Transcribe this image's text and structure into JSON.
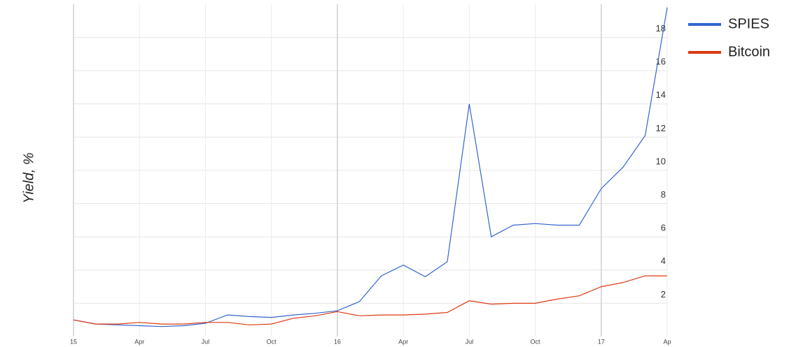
{
  "chart_data": {
    "type": "line",
    "y_label": "Yield, %",
    "x": [
      "2015-01",
      "2015-02",
      "2015-03",
      "2015-04",
      "2015-05",
      "2015-06",
      "2015-07",
      "2015-08",
      "2015-09",
      "2015-10",
      "2015-11",
      "2015-12",
      "2016-01",
      "2016-02",
      "2016-03",
      "2016-04",
      "2016-05",
      "2016-06",
      "2016-07",
      "2016-08",
      "2016-09",
      "2016-10",
      "2016-11",
      "2016-12",
      "2017-01",
      "2017-02",
      "2017-03",
      "2017-04"
    ],
    "series": [
      {
        "name": "SPIES",
        "color": "#3366cc",
        "values": [
          1.0,
          0.75,
          0.7,
          0.65,
          0.6,
          0.65,
          0.8,
          1.3,
          1.2,
          1.15,
          1.3,
          1.4,
          1.55,
          2.1,
          3.65,
          4.3,
          3.6,
          4.5,
          14,
          6.0,
          6.7,
          6.8,
          6.7,
          6.7,
          8.9,
          10.2,
          12.1,
          19.8
        ]
      },
      {
        "name": "Bitcoin",
        "color": "#dc3912",
        "values": [
          1.0,
          0.75,
          0.75,
          0.85,
          0.75,
          0.75,
          0.85,
          0.85,
          0.7,
          0.75,
          1.1,
          1.25,
          1.5,
          1.25,
          1.3,
          1.3,
          1.35,
          1.45,
          2.15,
          1.95,
          2.0,
          2.0,
          2.25,
          2.45,
          3.0,
          3.25,
          3.65,
          3.65
        ]
      }
    ],
    "xticks": [
      {
        "value": "2015-01",
        "label": "15"
      },
      {
        "value": "2015-04",
        "label": "Apr"
      },
      {
        "value": "2015-07",
        "label": "Jul"
      },
      {
        "value": "2015-10",
        "label": "Oct"
      },
      {
        "value": "2016-01",
        "label": "16"
      },
      {
        "value": "2016-04",
        "label": "Apr"
      },
      {
        "value": "2016-07",
        "label": "Jul"
      },
      {
        "value": "2016-10",
        "label": "Oct"
      },
      {
        "value": "2017-01",
        "label": "17"
      },
      {
        "value": "2017-04",
        "label": "Ap"
      }
    ],
    "ylim": [
      0,
      20
    ],
    "yticks": [
      2,
      4,
      6,
      8,
      10,
      12,
      14,
      16,
      18
    ],
    "grid": true,
    "legend": "right"
  }
}
